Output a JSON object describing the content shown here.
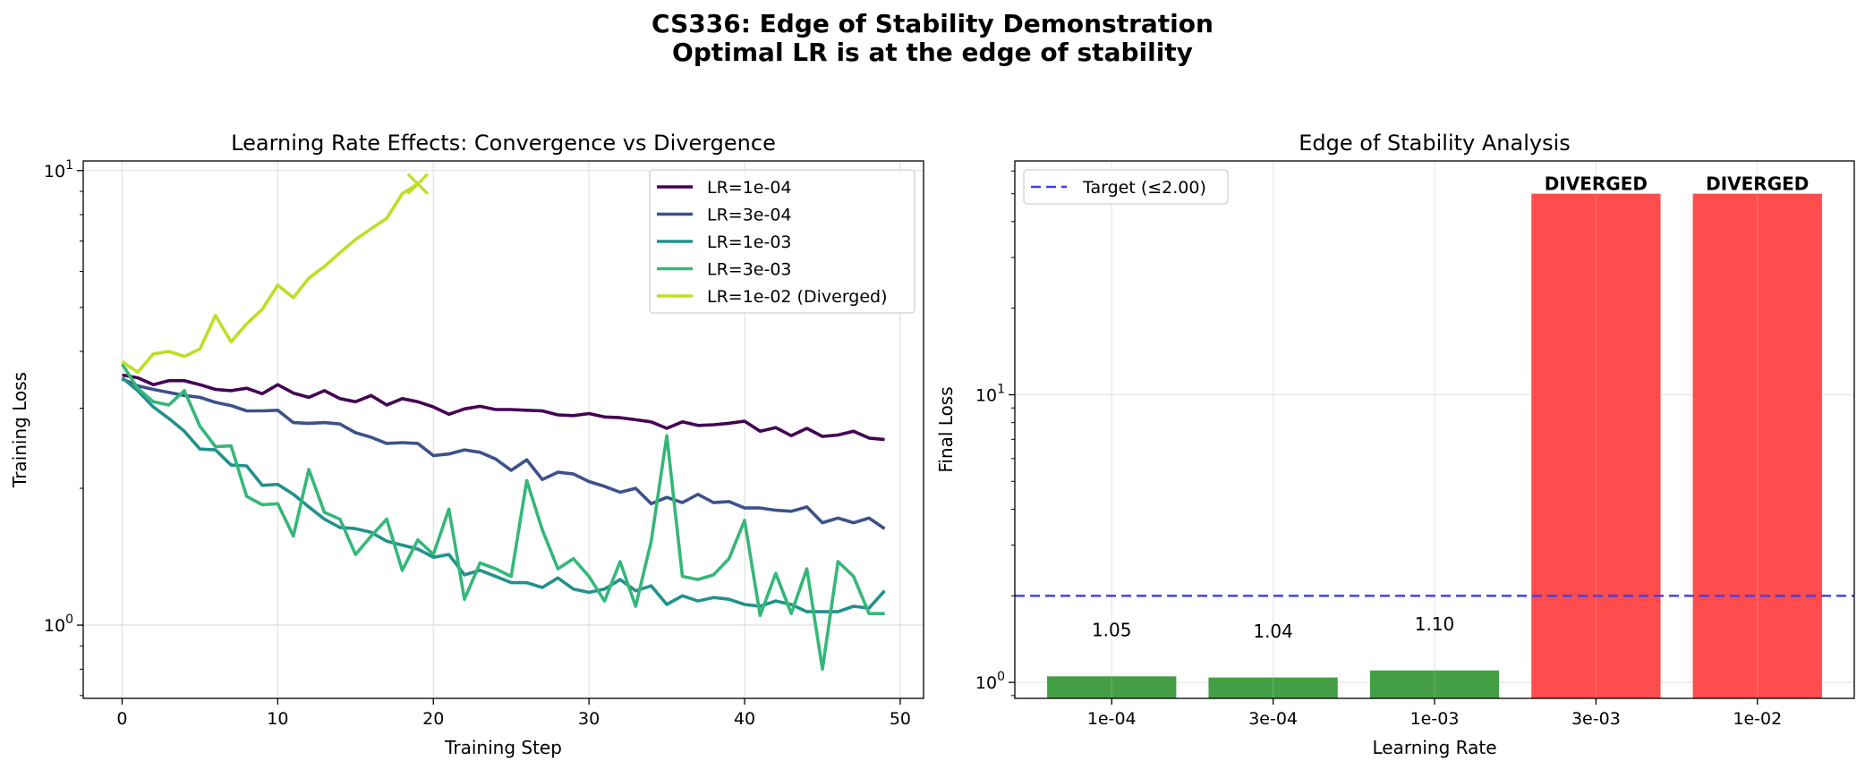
{
  "figure": {
    "title_line1": "CS336: Edge of Stability Demonstration",
    "title_line2": "Optimal LR is at the edge of stability"
  },
  "chart_data": [
    {
      "type": "line",
      "title": "Learning Rate Effects: Convergence vs Divergence",
      "xlabel": "Training Step",
      "ylabel": "Training Loss",
      "xlim": [
        -2.5,
        51.5
      ],
      "ylim": [
        0.69,
        10.5
      ],
      "yscale": "log",
      "xticks": [
        0,
        10,
        20,
        30,
        40,
        50
      ],
      "yticks": [
        {
          "value": 1,
          "base": "10",
          "exp": "0"
        },
        {
          "value": 10,
          "base": "10",
          "exp": "1"
        }
      ],
      "grid": true,
      "legend": "top-right",
      "divergence_marker": {
        "x": 19,
        "y": 9.35,
        "series": "LR=1e-02 (Diverged)"
      },
      "series": [
        {
          "name": "LR=1e-04",
          "color": "#440154",
          "x": [
            0,
            1,
            2,
            3,
            4,
            5,
            6,
            7,
            8,
            9,
            10,
            11,
            12,
            13,
            14,
            15,
            16,
            17,
            18,
            19,
            20,
            21,
            22,
            23,
            24,
            25,
            26,
            27,
            28,
            29,
            30,
            31,
            32,
            33,
            34,
            35,
            36,
            37,
            38,
            39,
            40,
            41,
            42,
            43,
            44,
            45,
            46,
            47,
            48,
            49
          ],
          "y": [
            3.55,
            3.5,
            3.38,
            3.45,
            3.45,
            3.38,
            3.3,
            3.28,
            3.32,
            3.23,
            3.38,
            3.24,
            3.17,
            3.28,
            3.15,
            3.1,
            3.2,
            3.05,
            3.15,
            3.1,
            3.02,
            2.91,
            2.99,
            3.03,
            2.98,
            2.98,
            2.97,
            2.96,
            2.9,
            2.89,
            2.92,
            2.87,
            2.86,
            2.83,
            2.8,
            2.71,
            2.8,
            2.75,
            2.76,
            2.78,
            2.81,
            2.67,
            2.72,
            2.61,
            2.71,
            2.6,
            2.62,
            2.67,
            2.58,
            2.56
          ]
        },
        {
          "name": "LR=3e-04",
          "color": "#3b528b",
          "x": [
            0,
            1,
            2,
            3,
            4,
            5,
            6,
            7,
            8,
            9,
            10,
            11,
            12,
            13,
            14,
            15,
            16,
            17,
            18,
            19,
            20,
            21,
            22,
            23,
            24,
            25,
            26,
            27,
            28,
            29,
            30,
            31,
            32,
            33,
            34,
            35,
            36,
            37,
            38,
            39,
            40,
            41,
            42,
            43,
            44,
            45,
            46,
            47,
            48,
            49
          ],
          "y": [
            3.48,
            3.36,
            3.3,
            3.25,
            3.2,
            3.17,
            3.09,
            3.04,
            2.96,
            2.96,
            2.97,
            2.79,
            2.78,
            2.79,
            2.77,
            2.65,
            2.59,
            2.51,
            2.52,
            2.51,
            2.36,
            2.38,
            2.43,
            2.4,
            2.32,
            2.19,
            2.31,
            2.09,
            2.17,
            2.15,
            2.07,
            2.02,
            1.96,
            2.0,
            1.85,
            1.91,
            1.86,
            1.94,
            1.86,
            1.87,
            1.81,
            1.81,
            1.79,
            1.78,
            1.82,
            1.68,
            1.72,
            1.68,
            1.72,
            1.63
          ]
        },
        {
          "name": "LR=1e-03",
          "color": "#21918c",
          "x": [
            0,
            1,
            2,
            3,
            4,
            5,
            6,
            7,
            8,
            9,
            10,
            11,
            12,
            13,
            14,
            15,
            16,
            17,
            18,
            19,
            20,
            21,
            22,
            23,
            24,
            25,
            26,
            27,
            28,
            29,
            30,
            31,
            32,
            33,
            34,
            35,
            36,
            37,
            38,
            39,
            40,
            41,
            42,
            43,
            44,
            45,
            46,
            47,
            48,
            49
          ],
          "y": [
            3.5,
            3.28,
            3.02,
            2.85,
            2.67,
            2.44,
            2.43,
            2.25,
            2.24,
            2.03,
            2.04,
            1.94,
            1.82,
            1.71,
            1.64,
            1.63,
            1.6,
            1.53,
            1.5,
            1.47,
            1.41,
            1.43,
            1.29,
            1.32,
            1.28,
            1.24,
            1.24,
            1.21,
            1.27,
            1.2,
            1.18,
            1.2,
            1.26,
            1.19,
            1.22,
            1.11,
            1.16,
            1.13,
            1.15,
            1.14,
            1.11,
            1.1,
            1.13,
            1.11,
            1.07,
            1.07,
            1.07,
            1.1,
            1.09,
            1.19
          ]
        },
        {
          "name": "LR=3e-03",
          "color": "#35b779",
          "x": [
            0,
            1,
            2,
            3,
            4,
            5,
            6,
            7,
            8,
            9,
            10,
            11,
            12,
            13,
            14,
            15,
            16,
            17,
            18,
            19,
            20,
            21,
            22,
            23,
            24,
            25,
            26,
            27,
            28,
            29,
            30,
            31,
            32,
            33,
            34,
            35,
            36,
            37,
            38,
            39,
            40,
            41,
            42,
            43,
            44,
            45,
            46,
            47,
            48,
            49
          ],
          "y": [
            3.75,
            3.32,
            3.1,
            3.05,
            3.28,
            2.74,
            2.47,
            2.48,
            1.92,
            1.84,
            1.85,
            1.57,
            2.2,
            1.77,
            1.71,
            1.43,
            1.57,
            1.71,
            1.32,
            1.54,
            1.43,
            1.8,
            1.14,
            1.37,
            1.33,
            1.28,
            2.08,
            1.62,
            1.33,
            1.4,
            1.28,
            1.13,
            1.38,
            1.1,
            1.53,
            2.61,
            1.28,
            1.26,
            1.29,
            1.4,
            1.7,
            1.05,
            1.3,
            1.06,
            1.33,
            0.8,
            1.38,
            1.28,
            1.06,
            1.06
          ]
        },
        {
          "name": "LR=1e-02 (Diverged)",
          "color": "#bddf26",
          "x": [
            0,
            1,
            2,
            3,
            4,
            5,
            6,
            7,
            8,
            9,
            10,
            11,
            12,
            13,
            14,
            15,
            16,
            17,
            18,
            19
          ],
          "y": [
            3.8,
            3.6,
            3.95,
            4.0,
            3.9,
            4.05,
            4.8,
            4.2,
            4.6,
            4.95,
            5.6,
            5.25,
            5.8,
            6.15,
            6.6,
            7.05,
            7.45,
            7.85,
            8.9,
            9.35
          ]
        }
      ]
    },
    {
      "type": "bar",
      "title": "Edge of Stability Analysis",
      "xlabel": "Learning Rate",
      "ylabel": "Final Loss",
      "yscale": "log",
      "ylim": [
        0.88,
        65
      ],
      "yticks": [
        {
          "value": 1,
          "base": "10",
          "exp": "0"
        },
        {
          "value": 10,
          "base": "10",
          "exp": "1"
        }
      ],
      "grid": true,
      "legend": "top-left",
      "categories": [
        "1e-04",
        "3e-04",
        "1e-03",
        "3e-03",
        "1e-02"
      ],
      "values": [
        1.05,
        1.04,
        1.1,
        50,
        50
      ],
      "bar_labels": [
        "1.05",
        "1.04",
        "1.10",
        "DIVERGED",
        "DIVERGED"
      ],
      "status": [
        "converged",
        "converged",
        "converged",
        "diverged",
        "diverged"
      ],
      "colors": {
        "converged": "#3a9a3a",
        "diverged": "#ff4c4c"
      },
      "target": {
        "value": 2.0,
        "label": "Target (≤2.00)",
        "color": "#4040ee"
      }
    }
  ]
}
